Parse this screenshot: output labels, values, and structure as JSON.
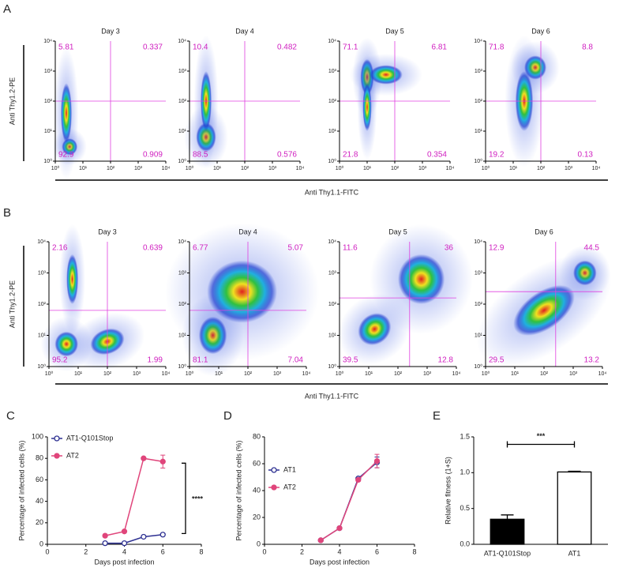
{
  "flow_A": {
    "label": "A",
    "y_label": "Anti Thy1.2-PE",
    "x_label": "Anti Thy1.1-FITC",
    "log_scale": true,
    "xlim": [
      1,
      10000
    ],
    "ylim": [
      1,
      10000
    ],
    "xticks": [
      {
        "value": 1,
        "label": "10⁰"
      },
      {
        "value": 10,
        "label": "10¹"
      },
      {
        "value": 100,
        "label": "10²"
      },
      {
        "value": 1000,
        "label": "10³"
      },
      {
        "value": 10000,
        "label": "10⁴"
      }
    ],
    "yticks": [
      {
        "value": 1,
        "label": "10⁰"
      },
      {
        "value": 10,
        "label": "10¹"
      },
      {
        "value": 100,
        "label": "10²"
      },
      {
        "value": 1000,
        "label": "10³"
      },
      {
        "value": 10000,
        "label": "10⁴"
      }
    ],
    "plots": [
      {
        "title": "Day 3",
        "quadrants": [
          5.81,
          0.337,
          92.9,
          0.909
        ]
      },
      {
        "title": "Day 4",
        "quadrants": [
          10.4,
          0.482,
          88.5,
          0.576
        ]
      },
      {
        "title": "Day 5",
        "quadrants": [
          71.1,
          6.81,
          21.8,
          0.354
        ]
      },
      {
        "title": "Day 6",
        "quadrants": [
          71.8,
          8.8,
          19.2,
          0.13
        ]
      }
    ]
  },
  "flow_B": {
    "label": "B",
    "y_label": "Anti Thy1.2-PE",
    "x_label": "Anti Thy1.1-FITC",
    "log_scale": true,
    "xlim": [
      1,
      10000
    ],
    "ylim": [
      1,
      10000
    ],
    "xticks": [
      {
        "value": 1,
        "label": "10⁰"
      },
      {
        "value": 10,
        "label": "10¹"
      },
      {
        "value": 100,
        "label": "10²"
      },
      {
        "value": 1000,
        "label": "10³"
      },
      {
        "value": 10000,
        "label": "10⁴"
      }
    ],
    "yticks": [
      {
        "value": 1,
        "label": "10⁰"
      },
      {
        "value": 10,
        "label": "10¹"
      },
      {
        "value": 100,
        "label": "10²"
      },
      {
        "value": 1000,
        "label": "10³"
      },
      {
        "value": 10000,
        "label": "10⁴"
      }
    ],
    "plots": [
      {
        "title": "Day 3",
        "quadrants": [
          2.16,
          0.639,
          95.2,
          1.99
        ]
      },
      {
        "title": "Day 4",
        "quadrants": [
          6.77,
          5.07,
          81.1,
          7.04
        ]
      },
      {
        "title": "Day 5",
        "quadrants": [
          11.6,
          36,
          39.5,
          12.8
        ]
      },
      {
        "title": "Day 6",
        "quadrants": [
          12.9,
          44.5,
          29.5,
          13.2
        ]
      }
    ]
  },
  "chart_data": [
    {
      "type": "line",
      "panel_label": "C",
      "x_label": "Days post infection",
      "y_label": "Percentage of infected cells (%)",
      "x": [
        3,
        4,
        5,
        6
      ],
      "xlim": [
        0,
        8
      ],
      "xticks": [
        0,
        2,
        4,
        6,
        8
      ],
      "ylim": [
        0,
        100
      ],
      "yticks": [
        0,
        20,
        40,
        60,
        80,
        100
      ],
      "legend": "upper left",
      "annotation": "****",
      "series": [
        {
          "name": "AT1-Q101Stop",
          "color": "#2e3192",
          "marker": "open",
          "values": [
            1,
            1,
            7,
            9
          ],
          "errors": [
            null,
            null,
            null,
            null
          ]
        },
        {
          "name": "AT2",
          "color": "#e0457b",
          "marker": "filled",
          "values": [
            8,
            12,
            80,
            77
          ],
          "errors": [
            null,
            null,
            null,
            6
          ]
        }
      ]
    },
    {
      "type": "line",
      "panel_label": "D",
      "x_label": "Days post infection",
      "y_label": "Percentage of infected cells (%)",
      "x": [
        3,
        4,
        5,
        6
      ],
      "xlim": [
        0,
        8
      ],
      "xticks": [
        0,
        2,
        4,
        6,
        8
      ],
      "ylim": [
        0,
        80
      ],
      "yticks": [
        0,
        20,
        40,
        60,
        80
      ],
      "legend": "upper left",
      "series": [
        {
          "name": "AT1",
          "color": "#2e3192",
          "marker": "open",
          "values": [
            3,
            12,
            49,
            61
          ],
          "errors": [
            null,
            null,
            null,
            4
          ]
        },
        {
          "name": "AT2",
          "color": "#e0457b",
          "marker": "filled",
          "values": [
            3,
            12,
            48,
            62
          ],
          "errors": [
            null,
            null,
            1,
            5
          ]
        }
      ]
    },
    {
      "type": "bar",
      "panel_label": "E",
      "y_label": "Relative fitness (1+S)",
      "categories": [
        "AT1-Q101Stop",
        "AT1"
      ],
      "values": [
        0.35,
        1.01
      ],
      "errors": [
        0.06,
        0.01
      ],
      "colors": [
        "#000000",
        "#ffffff"
      ],
      "ylim": [
        0,
        1.5
      ],
      "yticks": [
        {
          "value": 0,
          "label": "0.0"
        },
        {
          "value": 0.5,
          "label": "0.5"
        },
        {
          "value": 1,
          "label": "1.0"
        },
        1.5
      ],
      "annotation": "***"
    }
  ]
}
